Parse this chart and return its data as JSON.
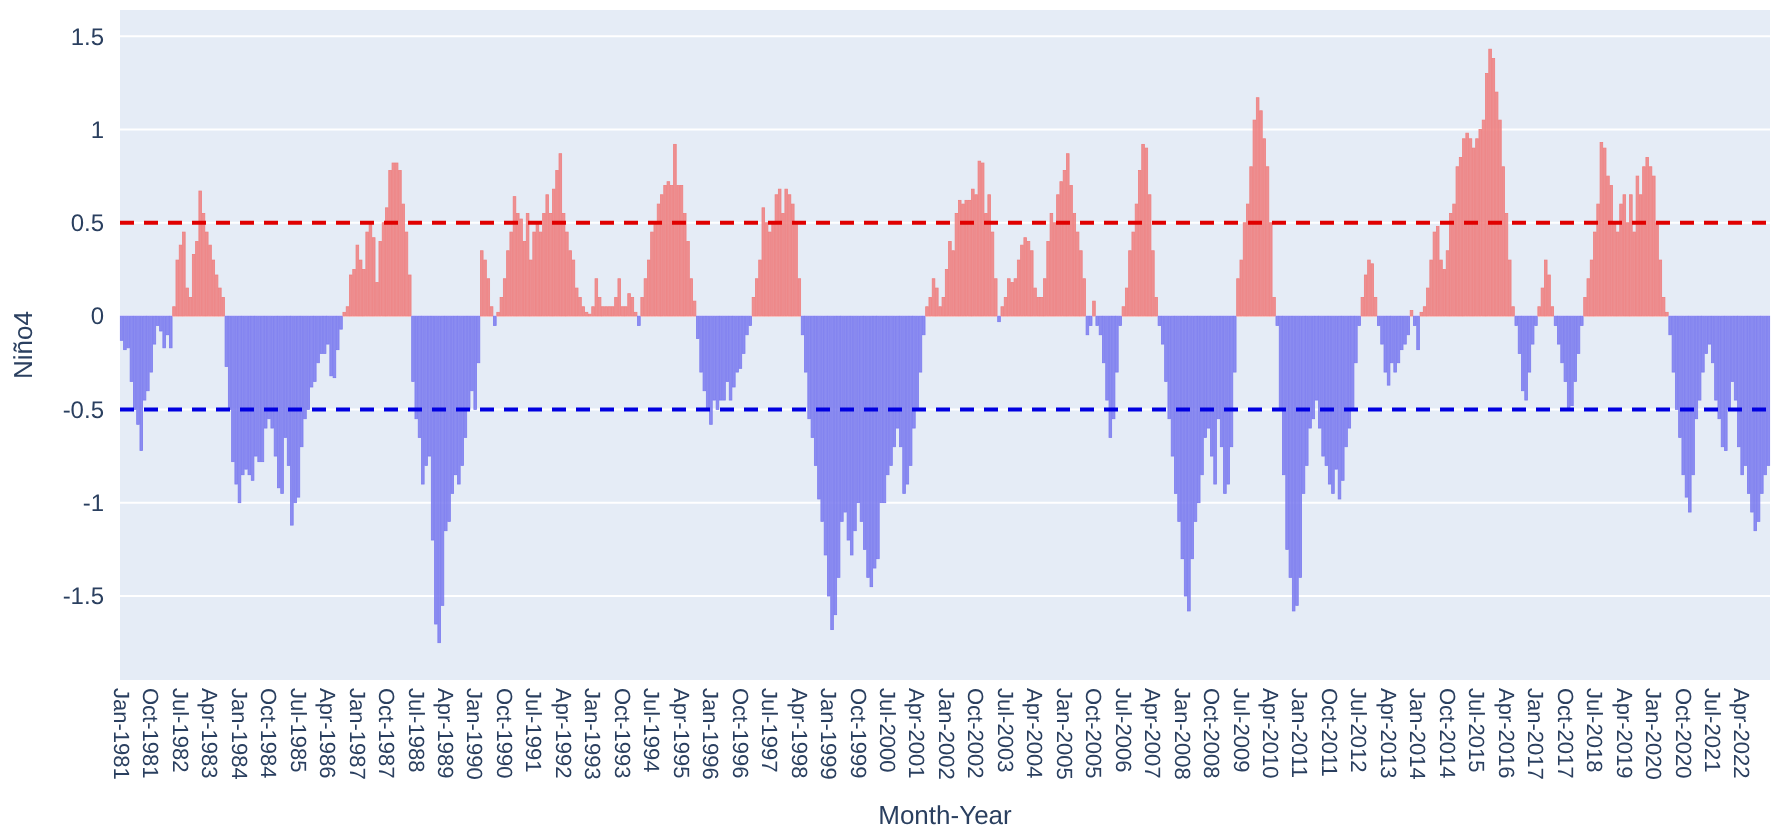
{
  "chart_data": {
    "type": "bar",
    "xlabel": "Month-Year",
    "ylabel": "Niño4",
    "ylim": [
      -1.95,
      1.64
    ],
    "yticks": [
      -1.5,
      -1,
      -0.5,
      0,
      0.5,
      1,
      1.5
    ],
    "grid": "y",
    "ref_lines": [
      {
        "axis": "y",
        "value": 0.5,
        "color": "#e00000",
        "line_style": "dashed"
      },
      {
        "axis": "y",
        "value": -0.5,
        "color": "#0000e0",
        "line_style": "dashed"
      }
    ],
    "categories": [
      "Jan-1981",
      null,
      null,
      null,
      null,
      null,
      null,
      null,
      null,
      "Oct-1981",
      null,
      null,
      null,
      null,
      null,
      null,
      null,
      null,
      "Jul-1982",
      null,
      null,
      null,
      null,
      null,
      null,
      null,
      null,
      "Apr-1983",
      null,
      null,
      null,
      null,
      null,
      null,
      null,
      null,
      "Jan-1984",
      null,
      null,
      null,
      null,
      null,
      null,
      null,
      null,
      "Oct-1984",
      null,
      null,
      null,
      null,
      null,
      null,
      null,
      null,
      "Jul-1985",
      null,
      null,
      null,
      null,
      null,
      null,
      null,
      null,
      "Apr-1986",
      null,
      null,
      null,
      null,
      null,
      null,
      null,
      null,
      "Jan-1987",
      null,
      null,
      null,
      null,
      null,
      null,
      null,
      null,
      "Oct-1987",
      null,
      null,
      null,
      null,
      null,
      null,
      null,
      null,
      "Jul-1988",
      null,
      null,
      null,
      null,
      null,
      null,
      null,
      null,
      "Apr-1989",
      null,
      null,
      null,
      null,
      null,
      null,
      null,
      null,
      "Jan-1990",
      null,
      null,
      null,
      null,
      null,
      null,
      null,
      null,
      "Oct-1990",
      null,
      null,
      null,
      null,
      null,
      null,
      null,
      null,
      "Jul-1991",
      null,
      null,
      null,
      null,
      null,
      null,
      null,
      null,
      "Apr-1992",
      null,
      null,
      null,
      null,
      null,
      null,
      null,
      null,
      "Jan-1993",
      null,
      null,
      null,
      null,
      null,
      null,
      null,
      null,
      "Oct-1993",
      null,
      null,
      null,
      null,
      null,
      null,
      null,
      null,
      "Jul-1994",
      null,
      null,
      null,
      null,
      null,
      null,
      null,
      null,
      "Apr-1995",
      null,
      null,
      null,
      null,
      null,
      null,
      null,
      null,
      "Jan-1996",
      null,
      null,
      null,
      null,
      null,
      null,
      null,
      null,
      "Oct-1996",
      null,
      null,
      null,
      null,
      null,
      null,
      null,
      null,
      "Jul-1997",
      null,
      null,
      null,
      null,
      null,
      null,
      null,
      null,
      "Apr-1998",
      null,
      null,
      null,
      null,
      null,
      null,
      null,
      null,
      "Jan-1999",
      null,
      null,
      null,
      null,
      null,
      null,
      null,
      null,
      "Oct-1999",
      null,
      null,
      null,
      null,
      null,
      null,
      null,
      null,
      "Jul-2000",
      null,
      null,
      null,
      null,
      null,
      null,
      null,
      null,
      "Apr-2001",
      null,
      null,
      null,
      null,
      null,
      null,
      null,
      null,
      "Jan-2002",
      null,
      null,
      null,
      null,
      null,
      null,
      null,
      null,
      "Oct-2002",
      null,
      null,
      null,
      null,
      null,
      null,
      null,
      null,
      "Jul-2003",
      null,
      null,
      null,
      null,
      null,
      null,
      null,
      null,
      "Apr-2004",
      null,
      null,
      null,
      null,
      null,
      null,
      null,
      null,
      "Jan-2005",
      null,
      null,
      null,
      null,
      null,
      null,
      null,
      null,
      "Oct-2005",
      null,
      null,
      null,
      null,
      null,
      null,
      null,
      null,
      "Jul-2006",
      null,
      null,
      null,
      null,
      null,
      null,
      null,
      null,
      "Apr-2007",
      null,
      null,
      null,
      null,
      null,
      null,
      null,
      null,
      "Jan-2008",
      null,
      null,
      null,
      null,
      null,
      null,
      null,
      null,
      "Oct-2008",
      null,
      null,
      null,
      null,
      null,
      null,
      null,
      null,
      "Jul-2009",
      null,
      null,
      null,
      null,
      null,
      null,
      null,
      null,
      "Apr-2010",
      null,
      null,
      null,
      null,
      null,
      null,
      null,
      null,
      "Jan-2011",
      null,
      null,
      null,
      null,
      null,
      null,
      null,
      null,
      "Oct-2011",
      null,
      null,
      null,
      null,
      null,
      null,
      null,
      null,
      "Jul-2012",
      null,
      null,
      null,
      null,
      null,
      null,
      null,
      null,
      "Apr-2013",
      null,
      null,
      null,
      null,
      null,
      null,
      null,
      null,
      "Jan-2014",
      null,
      null,
      null,
      null,
      null,
      null,
      null,
      null,
      "Oct-2014",
      null,
      null,
      null,
      null,
      null,
      null,
      null,
      null,
      "Jul-2015",
      null,
      null,
      null,
      null,
      null,
      null,
      null,
      null,
      "Apr-2016",
      null,
      null,
      null,
      null,
      null,
      null,
      null,
      null,
      "Jan-2017",
      null,
      null,
      null,
      null,
      null,
      null,
      null,
      null,
      "Oct-2017",
      null,
      null,
      null,
      null,
      null,
      null,
      null,
      null,
      "Jul-2018",
      null,
      null,
      null,
      null,
      null,
      null,
      null,
      null,
      "Apr-2019",
      null,
      null,
      null,
      null,
      null,
      null,
      null,
      null,
      "Jan-2020",
      null,
      null,
      null,
      null,
      null,
      null,
      null,
      null,
      "Oct-2020",
      null,
      null,
      null,
      null,
      null,
      null,
      null,
      null,
      "Jul-2021",
      null,
      null,
      null,
      null,
      null,
      null,
      null,
      null,
      "Apr-2022",
      null,
      null,
      null,
      null,
      null,
      null,
      null,
      null
    ],
    "values": [
      -0.13,
      -0.18,
      -0.17,
      -0.35,
      -0.5,
      -0.58,
      -0.72,
      -0.45,
      -0.4,
      -0.3,
      -0.15,
      -0.05,
      -0.08,
      -0.17,
      -0.1,
      -0.17,
      0.05,
      0.3,
      0.38,
      0.45,
      0.15,
      0.1,
      0.33,
      0.4,
      0.67,
      0.55,
      0.45,
      0.38,
      0.3,
      0.22,
      0.15,
      0.1,
      -0.27,
      -0.5,
      -0.78,
      -0.9,
      -1.0,
      -0.85,
      -0.82,
      -0.85,
      -0.88,
      -0.75,
      -0.78,
      -0.78,
      -0.6,
      -0.55,
      -0.6,
      -0.75,
      -0.92,
      -0.95,
      -0.65,
      -0.8,
      -1.12,
      -1.0,
      -0.97,
      -0.7,
      -0.55,
      -0.5,
      -0.38,
      -0.35,
      -0.25,
      -0.2,
      -0.2,
      -0.15,
      -0.32,
      -0.33,
      -0.18,
      -0.07,
      0.02,
      0.05,
      0.22,
      0.25,
      0.38,
      0.3,
      0.25,
      0.45,
      0.5,
      0.42,
      0.18,
      0.4,
      0.5,
      0.58,
      0.78,
      0.82,
      0.82,
      0.78,
      0.6,
      0.45,
      0.22,
      -0.35,
      -0.55,
      -0.65,
      -0.9,
      -0.8,
      -0.75,
      -1.2,
      -1.65,
      -1.75,
      -1.55,
      -1.15,
      -1.1,
      -0.95,
      -0.85,
      -0.9,
      -0.8,
      -0.65,
      -0.5,
      -0.4,
      -0.5,
      -0.25,
      0.35,
      0.3,
      0.2,
      0.05,
      -0.05,
      0.02,
      0.1,
      0.2,
      0.35,
      0.45,
      0.64,
      0.55,
      0.52,
      0.4,
      0.55,
      0.3,
      0.45,
      0.5,
      0.45,
      0.55,
      0.65,
      0.55,
      0.68,
      0.78,
      0.87,
      0.55,
      0.45,
      0.35,
      0.3,
      0.15,
      0.1,
      0.05,
      0.02,
      0.01,
      0.05,
      0.2,
      0.1,
      0.05,
      0.05,
      0.05,
      0.05,
      0.1,
      0.2,
      0.05,
      0.05,
      0.12,
      0.1,
      0.02,
      -0.05,
      0.1,
      0.2,
      0.3,
      0.45,
      0.5,
      0.6,
      0.65,
      0.7,
      0.72,
      0.7,
      0.92,
      0.7,
      0.7,
      0.55,
      0.4,
      0.2,
      0.08,
      -0.12,
      -0.3,
      -0.4,
      -0.5,
      -0.58,
      -0.45,
      -0.5,
      -0.45,
      -0.45,
      -0.35,
      -0.45,
      -0.38,
      -0.3,
      -0.28,
      -0.2,
      -0.1,
      -0.05,
      0.1,
      0.2,
      0.3,
      0.58,
      0.5,
      0.45,
      0.5,
      0.65,
      0.68,
      0.55,
      0.68,
      0.65,
      0.6,
      0.5,
      0.2,
      -0.1,
      -0.3,
      -0.55,
      -0.65,
      -0.8,
      -0.98,
      -1.1,
      -1.28,
      -1.5,
      -1.68,
      -1.6,
      -1.4,
      -1.1,
      -1.05,
      -1.2,
      -1.28,
      -1.15,
      -1.0,
      -1.1,
      -1.25,
      -1.4,
      -1.45,
      -1.35,
      -1.3,
      -1.0,
      -1.0,
      -0.85,
      -0.8,
      -0.7,
      -0.6,
      -0.7,
      -0.95,
      -0.9,
      -0.8,
      -0.6,
      -0.5,
      -0.3,
      -0.1,
      0.05,
      0.1,
      0.2,
      0.15,
      0.05,
      0.1,
      0.25,
      0.4,
      0.35,
      0.55,
      0.62,
      0.6,
      0.62,
      0.62,
      0.68,
      0.65,
      0.83,
      0.82,
      0.55,
      0.65,
      0.45,
      0.2,
      -0.03,
      0.05,
      0.1,
      0.2,
      0.18,
      0.2,
      0.3,
      0.38,
      0.42,
      0.4,
      0.35,
      0.15,
      0.1,
      0.1,
      0.2,
      0.4,
      0.55,
      0.5,
      0.65,
      0.72,
      0.78,
      0.87,
      0.7,
      0.55,
      0.45,
      0.35,
      0.2,
      -0.1,
      -0.05,
      0.08,
      -0.05,
      -0.1,
      -0.25,
      -0.45,
      -0.65,
      -0.55,
      -0.3,
      -0.05,
      0.05,
      0.15,
      0.35,
      0.45,
      0.6,
      0.78,
      0.92,
      0.9,
      0.65,
      0.35,
      0.1,
      -0.05,
      -0.15,
      -0.35,
      -0.55,
      -0.75,
      -0.95,
      -1.1,
      -1.3,
      -1.5,
      -1.58,
      -1.3,
      -1.1,
      -1.0,
      -0.85,
      -0.65,
      -0.6,
      -0.75,
      -0.9,
      -0.55,
      -0.7,
      -0.95,
      -0.9,
      -0.7,
      -0.3,
      0.2,
      0.3,
      0.5,
      0.6,
      0.8,
      1.05,
      1.17,
      1.1,
      0.95,
      0.8,
      0.5,
      0.1,
      -0.05,
      -0.5,
      -0.85,
      -1.25,
      -1.4,
      -1.58,
      -1.55,
      -1.4,
      -0.95,
      -0.8,
      -0.6,
      -0.55,
      -0.45,
      -0.6,
      -0.75,
      -0.8,
      -0.9,
      -0.95,
      -0.82,
      -0.98,
      -0.88,
      -0.7,
      -0.6,
      -0.5,
      -0.25,
      -0.05,
      0.1,
      0.22,
      0.3,
      0.28,
      0.1,
      -0.05,
      -0.15,
      -0.3,
      -0.37,
      -0.25,
      -0.3,
      -0.25,
      -0.18,
      -0.15,
      -0.1,
      0.03,
      -0.05,
      -0.18,
      0.02,
      0.05,
      0.15,
      0.3,
      0.45,
      0.48,
      0.3,
      0.25,
      0.35,
      0.55,
      0.6,
      0.8,
      0.85,
      0.95,
      0.98,
      0.95,
      0.9,
      0.95,
      1.0,
      1.05,
      1.3,
      1.43,
      1.38,
      1.2,
      1.05,
      0.8,
      0.55,
      0.3,
      0.05,
      -0.05,
      -0.2,
      -0.4,
      -0.45,
      -0.3,
      -0.15,
      -0.05,
      0.05,
      0.15,
      0.3,
      0.22,
      0.05,
      -0.05,
      -0.15,
      -0.25,
      -0.35,
      -0.5,
      -0.48,
      -0.35,
      -0.2,
      -0.05,
      0.1,
      0.2,
      0.3,
      0.45,
      0.6,
      0.93,
      0.9,
      0.75,
      0.7,
      0.5,
      0.45,
      0.6,
      0.65,
      0.5,
      0.65,
      0.45,
      0.75,
      0.65,
      0.8,
      0.85,
      0.8,
      0.75,
      0.5,
      0.3,
      0.1,
      0.02,
      -0.1,
      -0.3,
      -0.5,
      -0.65,
      -0.85,
      -0.97,
      -1.05,
      -0.85,
      -0.55,
      -0.45,
      -0.3,
      -0.2,
      -0.15,
      -0.25,
      -0.45,
      -0.55,
      -0.7,
      -0.72,
      -0.5,
      -0.35,
      -0.45,
      -0.7,
      -0.85,
      -0.8,
      -0.95,
      -1.05,
      -1.15,
      -1.1,
      -0.95,
      -0.85,
      -0.8
    ],
    "colors": [
      "#7b7bef",
      "#7b7bef",
      "#7b7bef",
      "#7b7bef",
      "#7b7bef",
      "#7b7bef",
      "#7b7bef",
      "#7b7bef",
      "#7b7bef",
      "#7b7bef",
      "#7b7bef",
      "#7b7bef",
      "#7b7bef",
      "#7b7bef",
      "#7b7bef",
      "#7b7bef",
      "#ef7f7f",
      "#ef7f7f",
      "#ef7f7f",
      "#ef7f7f",
      "#ef7f7f",
      "#ef7f7f",
      "#ef7f7f",
      "#ef7f7f",
      "#ef7f7f",
      "#ef7f7f",
      "#ef7f7f",
      "#ef7f7f",
      "#ef7f7f",
      "#ef7f7f",
      "#ef7f7f",
      "#ef7f7f",
      "#7b7bef",
      "#7b7bef",
      "#7b7bef",
      "#7b7bef",
      "#7b7bef",
      "#7b7bef",
      "#7b7bef",
      "#7b7bef",
      "#7b7bef",
      "#7b7bef",
      "#7b7bef",
      "#7b7bef",
      "#7b7bef",
      "#7b7bef",
      "#7b7bef",
      "#7b7bef",
      "#7b7bef",
      "#7b7bef",
      "#7b7bef",
      "#7b7bef",
      "#7b7bef",
      "#7b7bef",
      "#7b7bef",
      "#7b7bef",
      "#7b7bef",
      "#7b7bef",
      "#7b7bef",
      "#7b7bef",
      "#7b7bef",
      "#7b7bef",
      "#7b7bef",
      "#7b7bef",
      "#7b7bef",
      "#7b7bef",
      "#7b7bef",
      "#7b7bef",
      "#ef7f7f",
      "#ef7f7f",
      "#ef7f7f",
      "#ef7f7f",
      "#ef7f7f",
      "#ef7f7f",
      "#ef7f7f",
      "#ef7f7f",
      "#ef7f7f",
      "#ef7f7f",
      "#ef7f7f",
      "#ef7f7f",
      "#ef7f7f",
      "#ef7f7f",
      "#ef7f7f",
      "#ef7f7f",
      "#ef7f7f",
      "#ef7f7f",
      "#ef7f7f",
      "#ef7f7f",
      "#ef7f7f",
      "#7b7bef",
      "#7b7bef",
      "#7b7bef",
      "#7b7bef",
      "#7b7bef",
      "#7b7bef",
      "#7b7bef",
      "#7b7bef",
      "#7b7bef",
      "#7b7bef",
      "#7b7bef",
      "#7b7bef",
      "#7b7bef",
      "#7b7bef",
      "#7b7bef",
      "#7b7bef",
      "#7b7bef",
      "#7b7bef",
      "#7b7bef",
      "#7b7bef",
      "#7b7bef",
      "#ef7f7f",
      "#ef7f7f",
      "#ef7f7f",
      "#ef7f7f",
      "#7b7bef",
      "#ef7f7f",
      "#ef7f7f",
      "#ef7f7f",
      "#ef7f7f",
      "#ef7f7f",
      "#ef7f7f",
      "#ef7f7f",
      "#ef7f7f",
      "#ef7f7f",
      "#ef7f7f",
      "#ef7f7f",
      "#ef7f7f",
      "#ef7f7f",
      "#ef7f7f",
      "#ef7f7f",
      "#ef7f7f",
      "#ef7f7f",
      "#ef7f7f",
      "#ef7f7f",
      "#ef7f7f",
      "#ef7f7f",
      "#ef7f7f",
      "#ef7f7f",
      "#ef7f7f",
      "#ef7f7f",
      "#ef7f7f",
      "#ef7f7f",
      "#ef7f7f",
      "#ef7f7f",
      "#ef7f7f",
      "#ef7f7f",
      "#ef7f7f",
      "#ef7f7f",
      "#ef7f7f",
      "#ef7f7f",
      "#ef7f7f",
      "#ef7f7f",
      "#ef7f7f",
      "#ef7f7f",
      "#ef7f7f",
      "#ef7f7f",
      "#ef7f7f",
      "#ef7f7f",
      "#7b7bef",
      "#ef7f7f",
      "#ef7f7f",
      "#ef7f7f",
      "#ef7f7f",
      "#ef7f7f",
      "#ef7f7f",
      "#ef7f7f",
      "#ef7f7f",
      "#ef7f7f",
      "#ef7f7f",
      "#ef7f7f",
      "#ef7f7f",
      "#ef7f7f",
      "#ef7f7f",
      "#ef7f7f",
      "#ef7f7f",
      "#ef7f7f",
      "#7b7bef",
      "#7b7bef",
      "#7b7bef",
      "#7b7bef",
      "#7b7bef",
      "#7b7bef",
      "#7b7bef",
      "#7b7bef",
      "#7b7bef",
      "#7b7bef",
      "#7b7bef",
      "#7b7bef",
      "#7b7bef",
      "#7b7bef",
      "#7b7bef",
      "#7b7bef",
      "#7b7bef",
      "#ef7f7f",
      "#ef7f7f",
      "#ef7f7f",
      "#ef7f7f",
      "#ef7f7f",
      "#ef7f7f",
      "#ef7f7f",
      "#ef7f7f",
      "#ef7f7f",
      "#ef7f7f",
      "#ef7f7f",
      "#ef7f7f",
      "#ef7f7f",
      "#ef7f7f",
      "#ef7f7f",
      "#7b7bef",
      "#7b7bef",
      "#7b7bef",
      "#7b7bef",
      "#7b7bef",
      "#7b7bef",
      "#7b7bef",
      "#7b7bef",
      "#7b7bef",
      "#7b7bef",
      "#7b7bef",
      "#7b7bef",
      "#7b7bef",
      "#7b7bef",
      "#7b7bef",
      "#7b7bef",
      "#7b7bef",
      "#7b7bef",
      "#7b7bef",
      "#7b7bef",
      "#7b7bef",
      "#7b7bef",
      "#7b7bef",
      "#7b7bef",
      "#7b7bef",
      "#7b7bef",
      "#7b7bef",
      "#7b7bef",
      "#7b7bef",
      "#7b7bef",
      "#7b7bef",
      "#7b7bef",
      "#7b7bef",
      "#7b7bef",
      "#7b7bef",
      "#7b7bef",
      "#7b7bef",
      "#7b7bef",
      "#ef7f7f",
      "#ef7f7f",
      "#ef7f7f",
      "#ef7f7f",
      "#ef7f7f",
      "#ef7f7f",
      "#ef7f7f",
      "#ef7f7f",
      "#ef7f7f",
      "#ef7f7f",
      "#ef7f7f",
      "#ef7f7f",
      "#ef7f7f",
      "#ef7f7f",
      "#ef7f7f",
      "#ef7f7f",
      "#ef7f7f",
      "#ef7f7f",
      "#ef7f7f",
      "#ef7f7f",
      "#ef7f7f",
      "#ef7f7f",
      "#7b7bef",
      "#ef7f7f",
      "#ef7f7f",
      "#ef7f7f",
      "#ef7f7f",
      "#ef7f7f",
      "#ef7f7f",
      "#ef7f7f",
      "#ef7f7f",
      "#ef7f7f",
      "#ef7f7f",
      "#ef7f7f",
      "#ef7f7f",
      "#ef7f7f",
      "#ef7f7f",
      "#ef7f7f",
      "#ef7f7f",
      "#ef7f7f",
      "#ef7f7f",
      "#ef7f7f",
      "#ef7f7f",
      "#ef7f7f",
      "#ef7f7f",
      "#ef7f7f",
      "#ef7f7f",
      "#ef7f7f",
      "#ef7f7f",
      "#7b7bef",
      "#7b7bef",
      "#ef7f7f",
      "#7b7bef",
      "#7b7bef",
      "#7b7bef",
      "#7b7bef",
      "#7b7bef",
      "#7b7bef",
      "#7b7bef",
      "#7b7bef",
      "#ef7f7f",
      "#ef7f7f",
      "#ef7f7f",
      "#ef7f7f",
      "#ef7f7f",
      "#ef7f7f",
      "#ef7f7f",
      "#ef7f7f",
      "#ef7f7f",
      "#ef7f7f",
      "#ef7f7f",
      "#7b7bef",
      "#7b7bef",
      "#7b7bef",
      "#7b7bef",
      "#7b7bef",
      "#7b7bef",
      "#7b7bef",
      "#7b7bef",
      "#7b7bef",
      "#7b7bef",
      "#7b7bef",
      "#7b7bef",
      "#7b7bef",
      "#7b7bef",
      "#7b7bef",
      "#7b7bef",
      "#7b7bef",
      "#7b7bef",
      "#7b7bef",
      "#7b7bef",
      "#7b7bef",
      "#7b7bef",
      "#7b7bef",
      "#7b7bef",
      "#ef7f7f",
      "#ef7f7f",
      "#ef7f7f",
      "#ef7f7f",
      "#ef7f7f",
      "#ef7f7f",
      "#ef7f7f",
      "#ef7f7f",
      "#ef7f7f",
      "#ef7f7f",
      "#ef7f7f",
      "#ef7f7f",
      "#7b7bef",
      "#7b7bef",
      "#7b7bef",
      "#7b7bef",
      "#7b7bef",
      "#7b7bef",
      "#7b7bef",
      "#7b7bef",
      "#7b7bef",
      "#7b7bef",
      "#7b7bef",
      "#7b7bef",
      "#7b7bef",
      "#7b7bef",
      "#7b7bef",
      "#7b7bef",
      "#7b7bef",
      "#7b7bef",
      "#7b7bef",
      "#7b7bef",
      "#7b7bef",
      "#7b7bef",
      "#7b7bef",
      "#7b7bef",
      "#7b7bef",
      "#7b7bef",
      "#ef7f7f",
      "#ef7f7f",
      "#ef7f7f",
      "#ef7f7f",
      "#ef7f7f",
      "#7b7bef",
      "#7b7bef",
      "#7b7bef",
      "#7b7bef",
      "#7b7bef",
      "#7b7bef",
      "#7b7bef",
      "#7b7bef",
      "#7b7bef",
      "#7b7bef",
      "#ef7f7f",
      "#7b7bef",
      "#7b7bef",
      "#ef7f7f",
      "#ef7f7f",
      "#ef7f7f",
      "#ef7f7f",
      "#ef7f7f",
      "#ef7f7f",
      "#ef7f7f",
      "#ef7f7f",
      "#ef7f7f",
      "#ef7f7f",
      "#ef7f7f",
      "#ef7f7f",
      "#ef7f7f",
      "#ef7f7f",
      "#ef7f7f",
      "#ef7f7f",
      "#ef7f7f",
      "#ef7f7f",
      "#ef7f7f",
      "#ef7f7f",
      "#ef7f7f",
      "#ef7f7f",
      "#ef7f7f",
      "#ef7f7f",
      "#ef7f7f",
      "#ef7f7f",
      "#ef7f7f",
      "#ef7f7f",
      "#ef7f7f",
      "#7b7bef",
      "#7b7bef",
      "#7b7bef",
      "#7b7bef",
      "#7b7bef",
      "#7b7bef",
      "#7b7bef",
      "#ef7f7f",
      "#ef7f7f",
      "#ef7f7f",
      "#ef7f7f",
      "#ef7f7f",
      "#7b7bef",
      "#7b7bef",
      "#7b7bef",
      "#7b7bef",
      "#7b7bef",
      "#7b7bef",
      "#7b7bef",
      "#7b7bef",
      "#7b7bef",
      "#ef7f7f",
      "#ef7f7f",
      "#ef7f7f",
      "#ef7f7f",
      "#ef7f7f",
      "#ef7f7f",
      "#ef7f7f",
      "#ef7f7f",
      "#ef7f7f",
      "#ef7f7f",
      "#ef7f7f",
      "#ef7f7f",
      "#ef7f7f",
      "#ef7f7f",
      "#ef7f7f",
      "#ef7f7f",
      "#ef7f7f",
      "#ef7f7f",
      "#ef7f7f",
      "#ef7f7f",
      "#ef7f7f",
      "#ef7f7f",
      "#ef7f7f",
      "#ef7f7f",
      "#ef7f7f",
      "#ef7f7f",
      "#7b7bef",
      "#7b7bef",
      "#7b7bef",
      "#7b7bef",
      "#7b7bef",
      "#7b7bef",
      "#7b7bef",
      "#7b7bef",
      "#7b7bef",
      "#7b7bef",
      "#7b7bef",
      "#7b7bef",
      "#7b7bef",
      "#7b7bef",
      "#7b7bef",
      "#7b7bef",
      "#7b7bef",
      "#7b7bef",
      "#7b7bef",
      "#7b7bef",
      "#7b7bef",
      "#7b7bef",
      "#7b7bef",
      "#7b7bef",
      "#7b7bef",
      "#7b7bef",
      "#7b7bef",
      "#7b7bef",
      "#7b7bef",
      "#7b7bef",
      "#7b7bef"
    ]
  }
}
